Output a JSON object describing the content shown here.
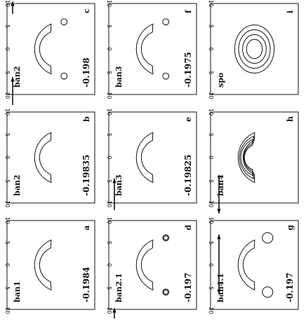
{
  "figure": {
    "tick_labels": {
      "major_axis": [
        "-10",
        "-5",
        "0",
        "5",
        "10"
      ],
      "minor_axis": [
        "-10",
        "-5",
        "0",
        "5",
        "10"
      ]
    },
    "panels": [
      {
        "id": "a",
        "name": "ban1",
        "value": "-0.1984",
        "shape": "banana"
      },
      {
        "id": "b",
        "name": "ban2",
        "value": "-0.19835",
        "shape": "banana"
      },
      {
        "id": "c",
        "name": "ban2",
        "value": "-0.198",
        "shape": "banana-lobes"
      },
      {
        "id": "d",
        "name": "ban2.1",
        "value": "-0.197",
        "shape": "banana-double-lobes"
      },
      {
        "id": "e",
        "name": "ban3",
        "value": "-0.19825",
        "shape": "banana"
      },
      {
        "id": "f",
        "name": "ban3",
        "value": "-0.1975",
        "shape": "banana-pinched"
      },
      {
        "id": "g",
        "name": "ban4.1",
        "value": "-0.197",
        "shape": "banana-big-lobes"
      },
      {
        "id": "h",
        "name": "ban4",
        "value": "",
        "shape": "banana-nested"
      },
      {
        "id": "i",
        "name": "spo",
        "value": "",
        "shape": "spot-nested"
      }
    ]
  }
}
